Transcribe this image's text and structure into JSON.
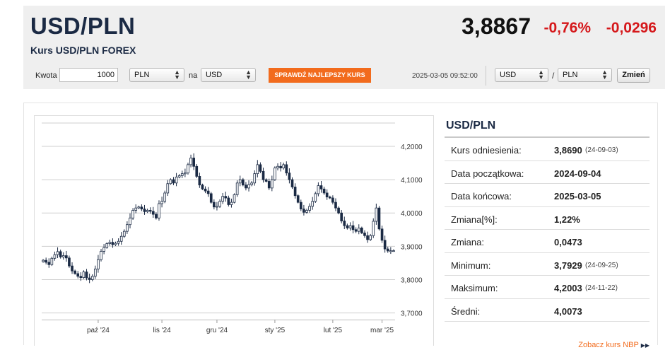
{
  "header": {
    "pair": "USD/PLN",
    "subtitle": "Kurs USD/PLN FOREX",
    "rate": "3,8867",
    "change_pct": "-0,76%",
    "change_abs": "-0,0296",
    "change_color": "#d5181b"
  },
  "calculator": {
    "amount_label": "Kwota",
    "amount_value": "1000",
    "from_currency": "PLN",
    "to_label": "na",
    "to_currency": "USD",
    "best_rate_button": "SPRAWDŹ NAJLEPSZY KURS",
    "timestamp": "2025-03-05 09:52:00",
    "pair_base": "USD",
    "pair_separator": "/",
    "pair_quote": "PLN",
    "swap_button": "Zmień",
    "accent": "#f26b1d"
  },
  "stats": {
    "title": "USD/PLN",
    "rows": [
      {
        "label": "Kurs odniesienia:",
        "value": "3,8690",
        "date": "(24-09-03)"
      },
      {
        "label": "Data początkowa:",
        "value": "2024-09-04",
        "date": ""
      },
      {
        "label": "Data końcowa:",
        "value": "2025-03-05",
        "date": ""
      },
      {
        "label": "Zmiana[%]:",
        "value": "1,22%",
        "date": ""
      },
      {
        "label": "Zmiana:",
        "value": "0,0473",
        "date": ""
      },
      {
        "label": "Minimum:",
        "value": "3,7929",
        "date": "(24-09-25)"
      },
      {
        "label": "Maksimum:",
        "value": "4,2003",
        "date": "(24-11-22)"
      },
      {
        "label": "Średni:",
        "value": "4,0073",
        "date": ""
      }
    ],
    "nbp_link": "Zobacz kurs NBP"
  },
  "chart_data": {
    "type": "candlestick",
    "ylim": [
      3.68,
      4.27
    ],
    "y_ticks": [
      "4,2000",
      "4,1000",
      "4,0000",
      "3,9000",
      "3,8000",
      "3,7000"
    ],
    "y_tick_values": [
      4.2,
      4.1,
      4.0,
      3.9,
      3.8,
      3.7
    ],
    "x_ticks": [
      "paź '24",
      "lis '24",
      "gru '24",
      "sty '25",
      "lut '25",
      "mar '25"
    ],
    "x_tick_index": [
      19,
      41,
      60,
      80,
      100,
      117
    ],
    "n_periods": 122,
    "closes": [
      3.858,
      3.852,
      3.845,
      3.864,
      3.875,
      3.884,
      3.868,
      3.872,
      3.865,
      3.841,
      3.826,
      3.818,
      3.81,
      3.806,
      3.823,
      3.805,
      3.8,
      3.81,
      3.832,
      3.86,
      3.885,
      3.896,
      3.908,
      3.912,
      3.905,
      3.909,
      3.915,
      3.93,
      3.945,
      3.965,
      3.985,
      4.008,
      4.015,
      4.018,
      4.012,
      4.004,
      4.008,
      4.005,
      3.996,
      3.985,
      4.028,
      4.035,
      4.06,
      4.088,
      4.1,
      4.09,
      4.108,
      4.112,
      4.118,
      4.12,
      4.145,
      4.165,
      4.14,
      4.11,
      4.084,
      4.072,
      4.066,
      4.058,
      4.032,
      4.018,
      4.02,
      4.035,
      4.05,
      4.045,
      4.025,
      4.032,
      4.055,
      4.09,
      4.1,
      4.084,
      4.075,
      4.085,
      4.09,
      4.118,
      4.145,
      4.125,
      4.1,
      4.095,
      4.075,
      4.1,
      4.135,
      4.14,
      4.135,
      4.145,
      4.12,
      4.1,
      4.078,
      4.052,
      4.032,
      4.012,
      4.002,
      4.008,
      4.02,
      4.035,
      4.058,
      4.082,
      4.072,
      4.06,
      4.048,
      4.045,
      4.032,
      4.015,
      4.0,
      3.976,
      3.962,
      3.955,
      3.962,
      3.95,
      3.945,
      3.955,
      3.94,
      3.932,
      3.92,
      3.932,
      3.975,
      4.015,
      3.952,
      3.918,
      3.892,
      3.886,
      3.8867,
      3.887
    ]
  }
}
